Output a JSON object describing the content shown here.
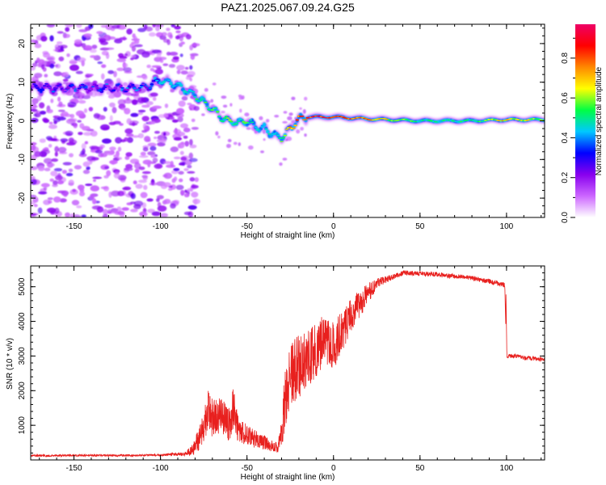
{
  "title": "PAZ1.2025.067.09.24.G25",
  "colors": {
    "snr_line": "#e8201e",
    "colormap": [
      "#ffffff",
      "#cc66ff",
      "#8800ee",
      "#0000ff",
      "#00c8ff",
      "#00ff44",
      "#ffff00",
      "#ff8800",
      "#ff0000",
      "#ee0066"
    ]
  },
  "chart_data": [
    {
      "type": "heatmap",
      "xlabel": "Height of straight line (km)",
      "ylabel": "Frequency (Hz)",
      "xlim": [
        -175,
        122
      ],
      "ylim": [
        -25,
        25
      ],
      "xticks": [
        -150,
        -100,
        -50,
        0,
        50,
        100
      ],
      "yticks": [
        -20,
        -10,
        0,
        10,
        20
      ],
      "colorbar": {
        "label": "Normalized spectral amplitude",
        "range": [
          0,
          0.97
        ],
        "ticks": [
          0.0,
          0.2,
          0.4,
          0.6,
          0.8
        ]
      },
      "noise_region_x": [
        -175,
        -85
      ],
      "ridge": {
        "x": [
          -175,
          -150,
          -130,
          -110,
          -100,
          -92,
          -85,
          -80,
          -75,
          -70,
          -65,
          -60,
          -55,
          -50,
          -45,
          -40,
          -35,
          -30,
          -25,
          -20,
          -15,
          0,
          20,
          50,
          80,
          100,
          122
        ],
        "y": [
          8.5,
          8.5,
          8.5,
          8.5,
          10.5,
          9.5,
          8,
          6.5,
          5,
          3,
          1,
          0,
          -0.5,
          0,
          -1.5,
          -2,
          -3.5,
          -4.5,
          -2,
          0.5,
          1,
          1,
          0.5,
          0,
          0,
          0.3,
          0.3
        ],
        "amplitude": [
          0.35,
          0.35,
          0.35,
          0.4,
          0.45,
          0.4,
          0.45,
          0.5,
          0.55,
          0.6,
          0.55,
          0.6,
          0.5,
          0.55,
          0.4,
          0.5,
          0.45,
          0.55,
          0.7,
          0.85,
          0.9,
          0.88,
          0.75,
          0.5,
          0.5,
          0.7,
          0.6
        ]
      }
    },
    {
      "type": "line",
      "xlabel": "Height of straight line (km)",
      "ylabel": "SNR (10 * v/v)",
      "xlim": [
        -175,
        122
      ],
      "ylim": [
        0,
        5600
      ],
      "xticks": [
        -150,
        -100,
        -50,
        0,
        50,
        100
      ],
      "yticks": [
        1000,
        2000,
        3000,
        4000,
        5000
      ],
      "series": [
        {
          "x": [
            -175,
            -150,
            -120,
            -100,
            -85,
            -80,
            -75,
            -72,
            -70,
            -65,
            -60,
            -58,
            -55,
            -50,
            -45,
            -40,
            -35,
            -32,
            -30,
            -28,
            -25,
            -20,
            -15,
            -10,
            -5,
            0,
            5,
            10,
            15,
            20,
            25,
            30,
            35,
            40,
            50,
            60,
            70,
            80,
            90,
            99,
            100,
            105,
            110,
            122
          ],
          "y": [
            120,
            130,
            130,
            140,
            180,
            400,
            900,
            1500,
            1200,
            1300,
            1000,
            1500,
            900,
            700,
            600,
            500,
            400,
            350,
            800,
            1800,
            2500,
            2700,
            2900,
            3200,
            3500,
            3300,
            3700,
            4200,
            4500,
            4800,
            5100,
            5200,
            5300,
            5400,
            5380,
            5350,
            5300,
            5250,
            5150,
            5050,
            3000,
            3000,
            2950,
            2900
          ],
          "noise": [
            30,
            30,
            30,
            30,
            60,
            250,
            500,
            600,
            600,
            500,
            500,
            600,
            400,
            300,
            250,
            200,
            150,
            150,
            500,
            900,
            1000,
            900,
            800,
            800,
            700,
            700,
            600,
            500,
            400,
            300,
            150,
            100,
            80,
            70,
            70,
            70,
            70,
            70,
            70,
            70,
            60,
            60,
            60,
            60
          ]
        }
      ]
    }
  ]
}
